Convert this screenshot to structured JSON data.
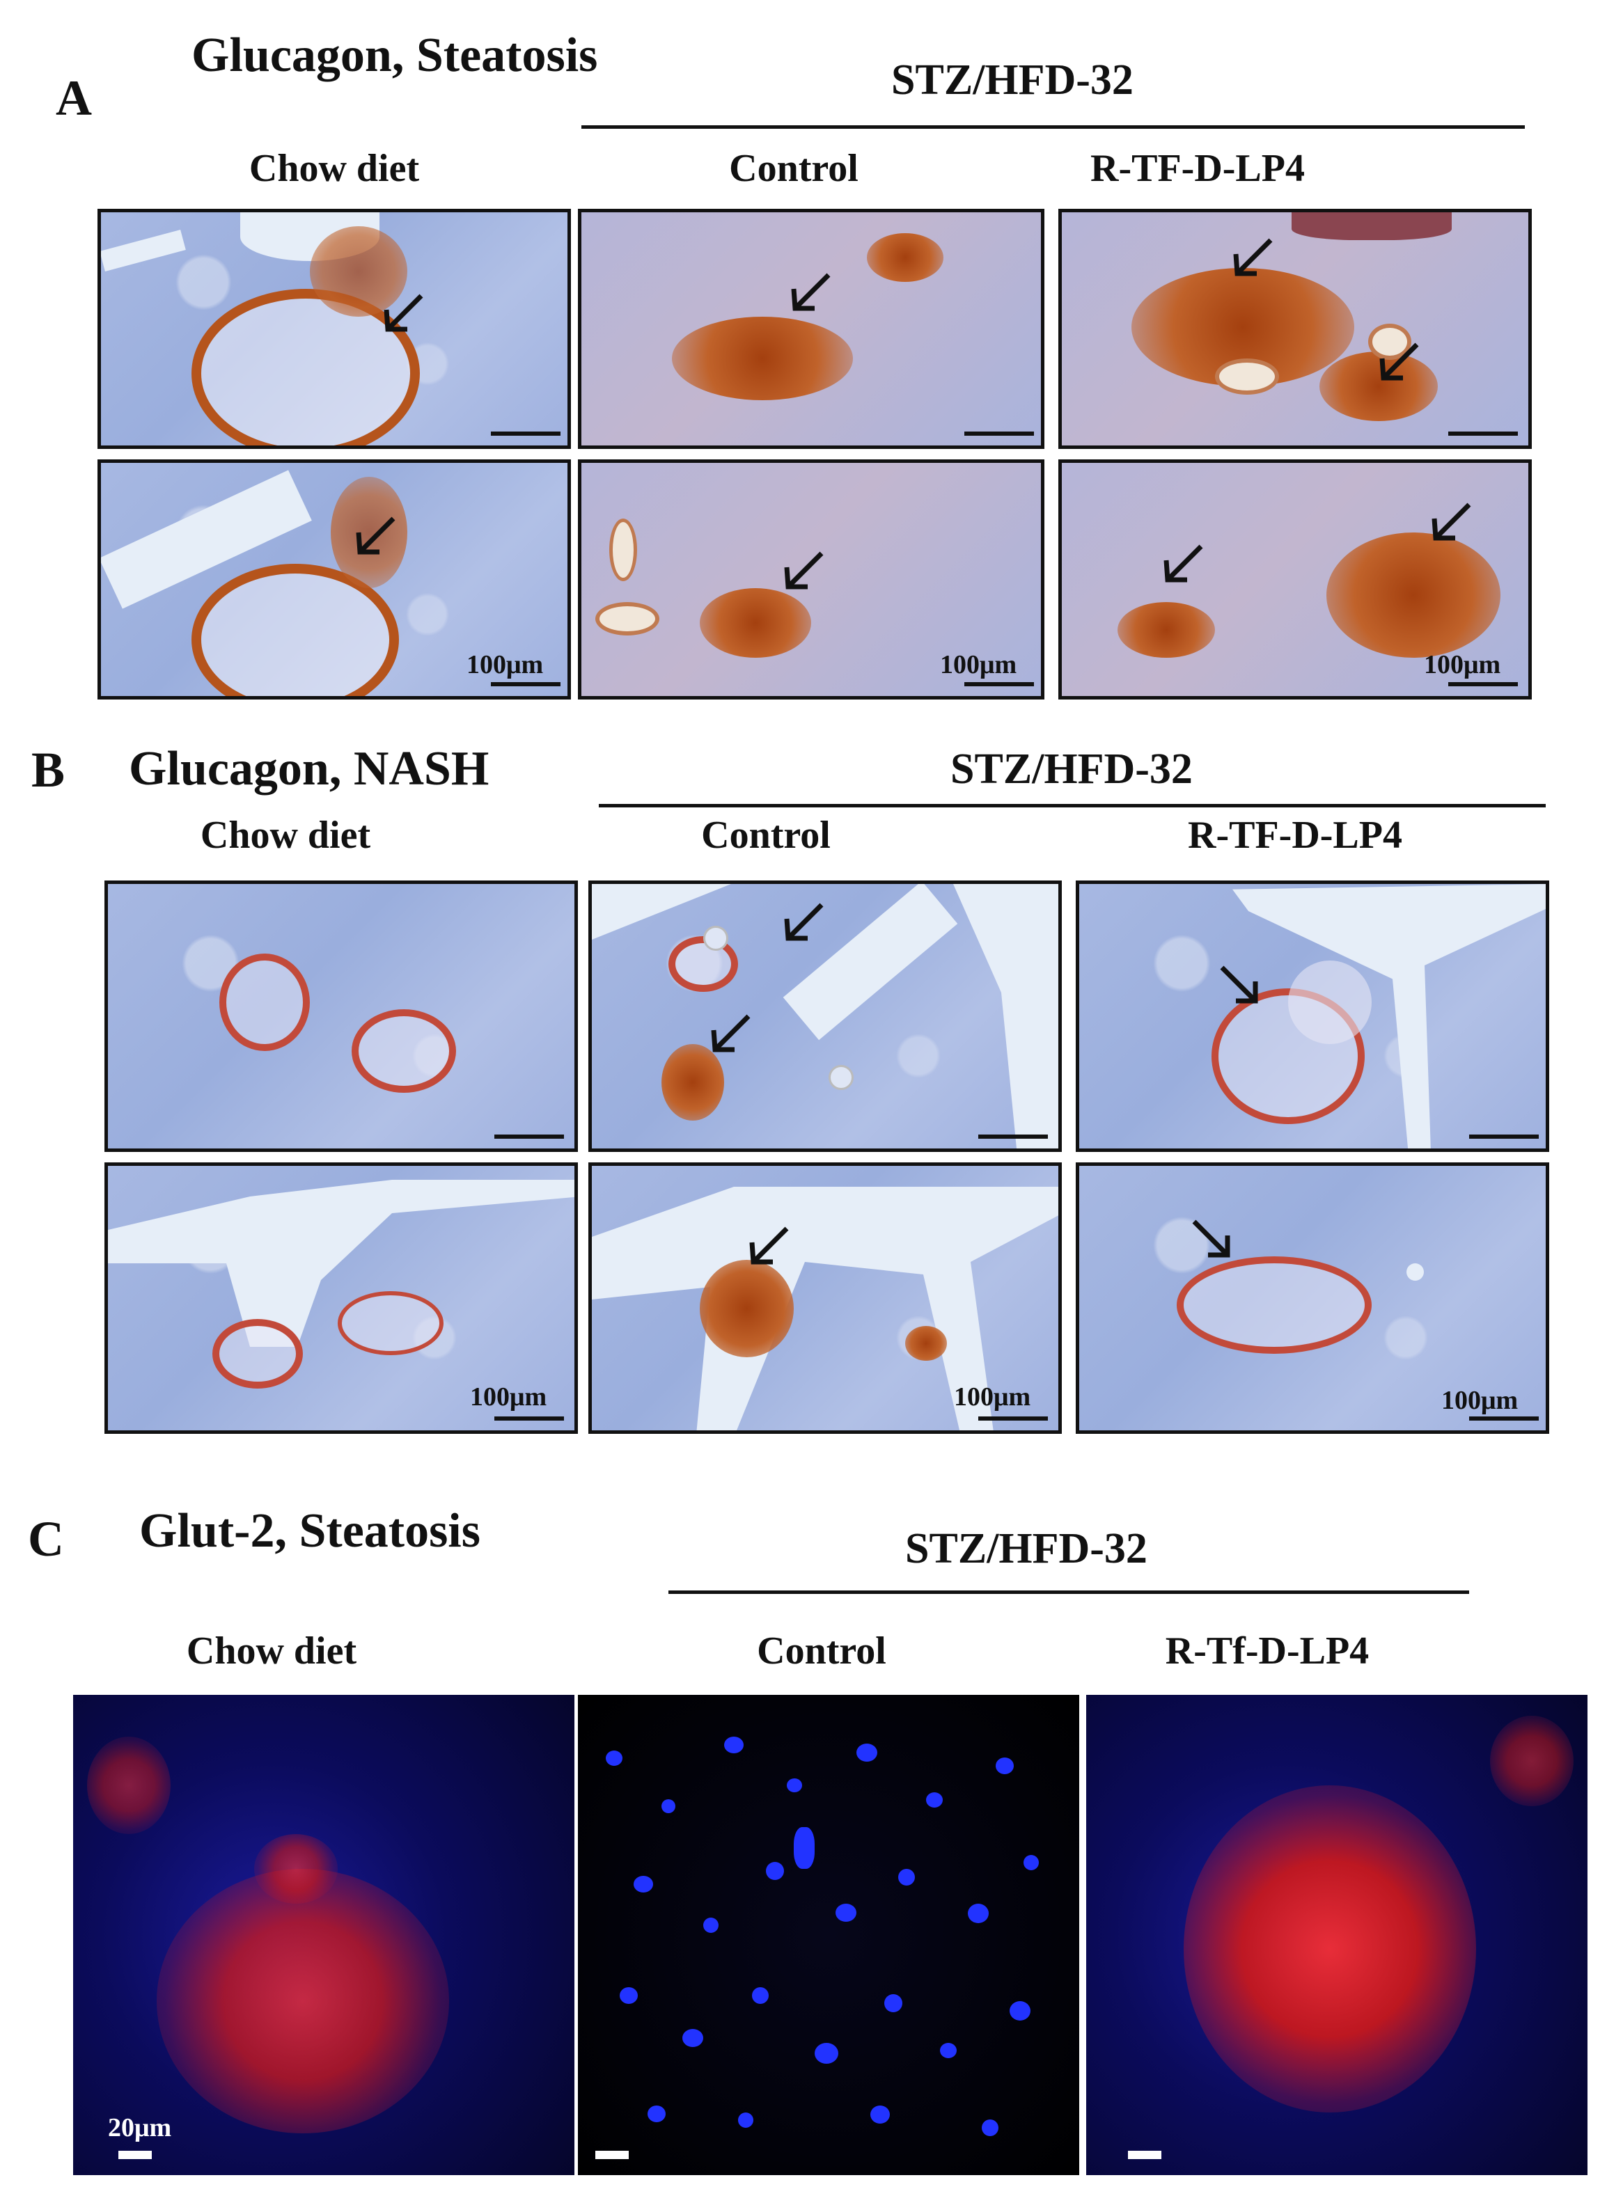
{
  "panelA": {
    "letter": "A",
    "title": "Glucagon, Steatosis",
    "group": "STZ/HFD-32",
    "columns": [
      "Chow diet",
      "Control",
      "R-TF-D-LP4"
    ],
    "scale_label": "100μm"
  },
  "panelB": {
    "letter": "B",
    "title": "Glucagon, NASH",
    "group": "STZ/HFD-32",
    "columns": [
      "Chow diet",
      "Control",
      "R-TF-D-LP4"
    ],
    "scale_label": "100μm"
  },
  "panelC": {
    "letter": "C",
    "title": "Glut-2, Steatosis",
    "group": "STZ/HFD-32",
    "columns": [
      "Chow diet",
      "Control",
      "R-Tf-D-LP4"
    ],
    "scale_label": "20μm"
  },
  "icons": {
    "arrow": "arrow-down-left-icon"
  },
  "colors": {
    "ihc_background": "#a7b8e2",
    "glucagon_stain": "#b5541c",
    "fluor_nuclei": "#2233ff",
    "fluor_glut2": "#ff2020"
  }
}
